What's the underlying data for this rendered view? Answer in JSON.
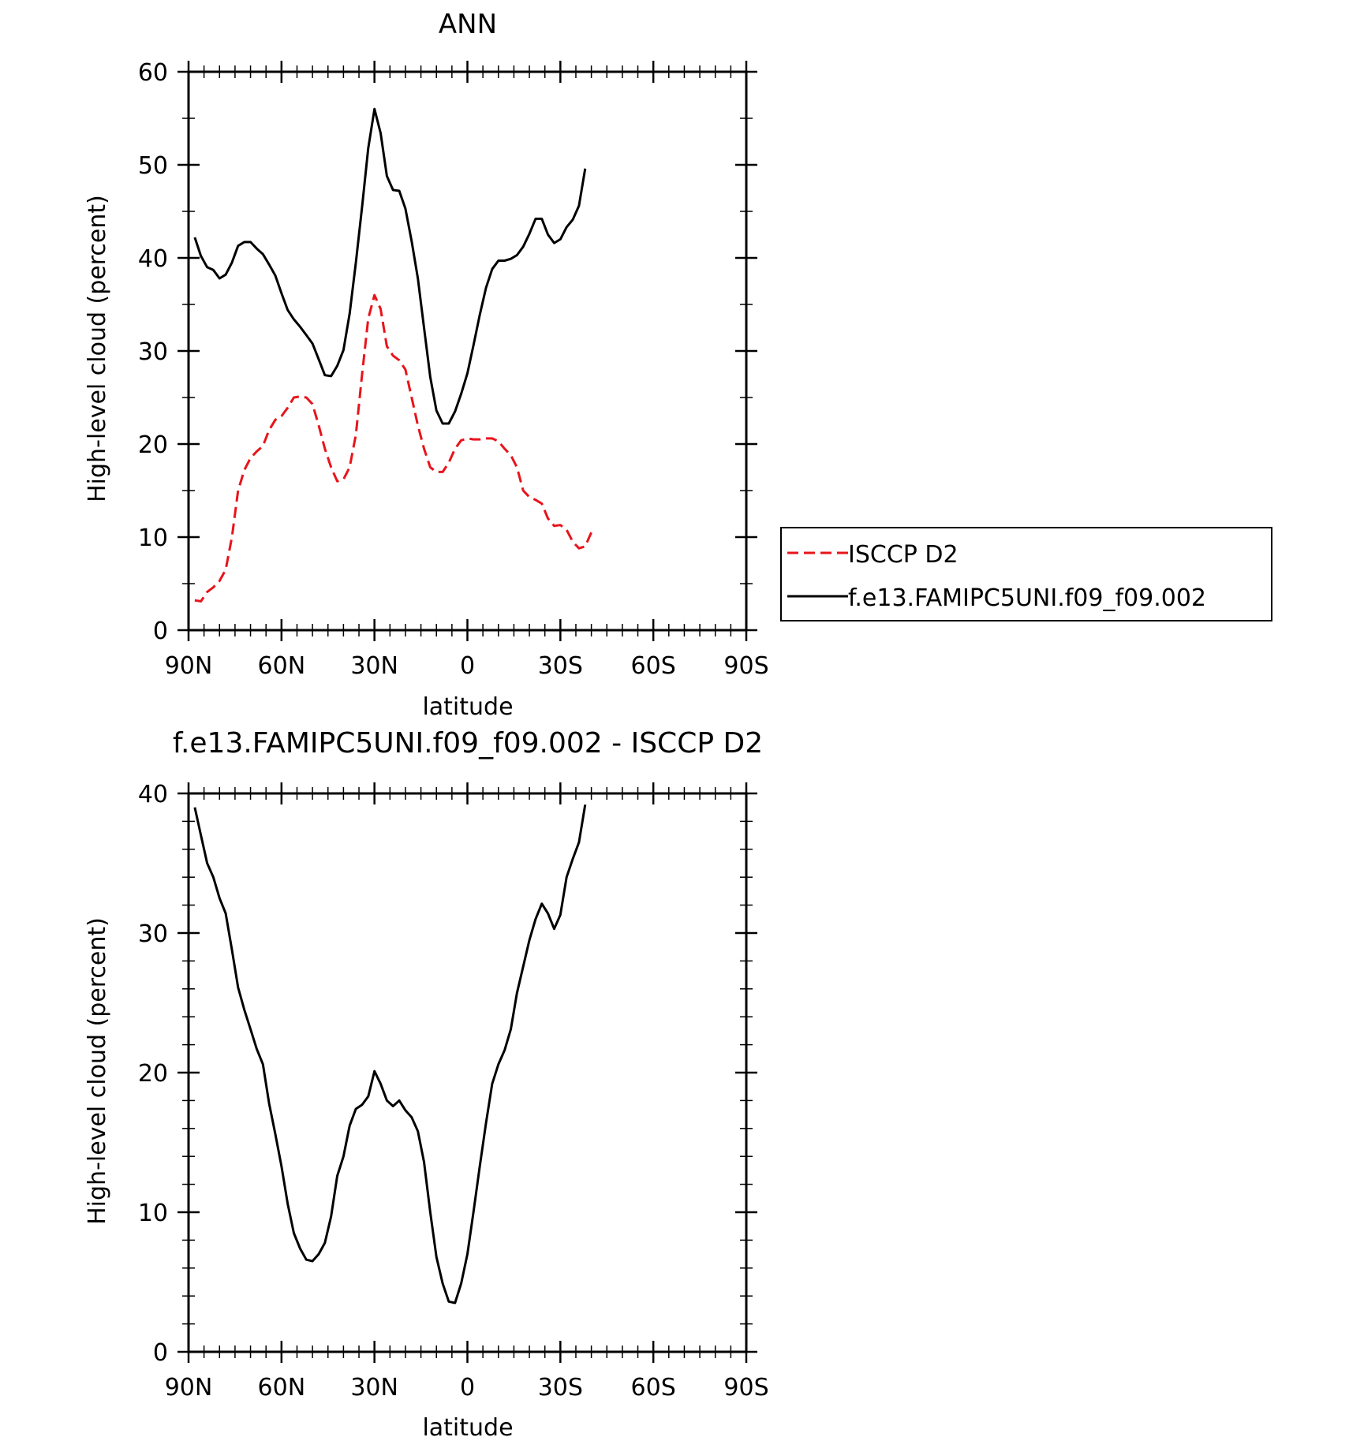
{
  "chart_data": [
    {
      "type": "line",
      "title": "ANN",
      "xlabel": "latitude",
      "ylabel": "High-level cloud (percent)",
      "xlim": [
        90,
        -90
      ],
      "ylim": [
        0,
        60
      ],
      "x_ticks": [
        {
          "v": 90,
          "label": "90N"
        },
        {
          "v": 60,
          "label": "60N"
        },
        {
          "v": 30,
          "label": "30N"
        },
        {
          "v": 0,
          "label": "0"
        },
        {
          "v": -30,
          "label": "30S"
        },
        {
          "v": -60,
          "label": "60S"
        },
        {
          "v": -90,
          "label": "90S"
        }
      ],
      "y_ticks": [
        0,
        10,
        20,
        30,
        40,
        50,
        60
      ],
      "legend_position": "right",
      "series": [
        {
          "name": "ISCCP D2",
          "color": "#e8141b",
          "dash": true,
          "points": [
            [
              88,
              3.2
            ],
            [
              86,
              3.1
            ],
            [
              84,
              4.1
            ],
            [
              82,
              4.6
            ],
            [
              80,
              5.3
            ],
            [
              78,
              6.5
            ],
            [
              76,
              10.0
            ],
            [
              74,
              15.0
            ],
            [
              72,
              17.2
            ],
            [
              70,
              18.5
            ],
            [
              68,
              19.2
            ],
            [
              66,
              19.8
            ],
            [
              64,
              21.5
            ],
            [
              62,
              22.6
            ],
            [
              60,
              23.0
            ],
            [
              58,
              23.9
            ],
            [
              56,
              25.0
            ],
            [
              54,
              25.1
            ],
            [
              52,
              25.0
            ],
            [
              50,
              24.3
            ],
            [
              48,
              22.0
            ],
            [
              46,
              19.5
            ],
            [
              44,
              17.5
            ],
            [
              42,
              16.0
            ],
            [
              40,
              16.2
            ],
            [
              38,
              17.5
            ],
            [
              36,
              21.0
            ],
            [
              34,
              27.5
            ],
            [
              32,
              33.5
            ],
            [
              30,
              36.0
            ],
            [
              28,
              34.5
            ],
            [
              26,
              30.5
            ],
            [
              24,
              29.5
            ],
            [
              22,
              29.0
            ],
            [
              20,
              28.0
            ],
            [
              18,
              25.0
            ],
            [
              16,
              22.0
            ],
            [
              14,
              19.5
            ],
            [
              12,
              17.5
            ],
            [
              10,
              17.0
            ],
            [
              8,
              17.0
            ],
            [
              6,
              18.0
            ],
            [
              4,
              19.5
            ],
            [
              2,
              20.4
            ],
            [
              0,
              20.6
            ],
            [
              -2,
              20.5
            ],
            [
              -4,
              20.5
            ],
            [
              -6,
              20.6
            ],
            [
              -8,
              20.6
            ],
            [
              -10,
              20.3
            ],
            [
              -12,
              19.5
            ],
            [
              -14,
              18.8
            ],
            [
              -16,
              17.5
            ],
            [
              -18,
              15.0
            ],
            [
              -20,
              14.3
            ],
            [
              -22,
              14.0
            ],
            [
              -24,
              13.6
            ],
            [
              -26,
              12.0
            ],
            [
              -28,
              11.2
            ],
            [
              -30,
              11.3
            ],
            [
              -32,
              10.8
            ],
            [
              -34,
              9.5
            ],
            [
              -36,
              8.8
            ],
            [
              -38,
              9.0
            ],
            [
              -40,
              10.5
            ]
          ]
        },
        {
          "name": "f.e13.FAMIPC5UNI.f09_f09.002",
          "color": "#000000",
          "dash": false,
          "points": [
            [
              88,
              42.2
            ],
            [
              86,
              40.2
            ],
            [
              84,
              39.0
            ],
            [
              82,
              38.7
            ],
            [
              80,
              37.8
            ],
            [
              78,
              38.2
            ],
            [
              76,
              39.5
            ],
            [
              74,
              41.3
            ],
            [
              72,
              41.7
            ],
            [
              70,
              41.7
            ],
            [
              68,
              41.0
            ],
            [
              66,
              40.4
            ],
            [
              64,
              39.3
            ],
            [
              62,
              38.1
            ],
            [
              60,
              36.2
            ],
            [
              58,
              34.4
            ],
            [
              56,
              33.4
            ],
            [
              54,
              32.6
            ],
            [
              52,
              31.7
            ],
            [
              50,
              30.8
            ],
            [
              48,
              29.1
            ],
            [
              46,
              27.4
            ],
            [
              44,
              27.3
            ],
            [
              42,
              28.4
            ],
            [
              40,
              30.1
            ],
            [
              38,
              34.0
            ],
            [
              36,
              39.5
            ],
            [
              34,
              45.5
            ],
            [
              32,
              51.8
            ],
            [
              30,
              56.0
            ],
            [
              28,
              53.4
            ],
            [
              26,
              48.8
            ],
            [
              24,
              47.3
            ],
            [
              22,
              47.2
            ],
            [
              20,
              45.3
            ],
            [
              18,
              41.8
            ],
            [
              16,
              37.8
            ],
            [
              14,
              32.5
            ],
            [
              12,
              27.2
            ],
            [
              10,
              23.6
            ],
            [
              8,
              22.2
            ],
            [
              6,
              22.2
            ],
            [
              4,
              23.5
            ],
            [
              2,
              25.4
            ],
            [
              0,
              27.6
            ],
            [
              -2,
              30.7
            ],
            [
              -4,
              33.9
            ],
            [
              -6,
              36.8
            ],
            [
              -8,
              38.8
            ],
            [
              -10,
              39.7
            ],
            [
              -12,
              39.7
            ],
            [
              -14,
              39.9
            ],
            [
              -16,
              40.3
            ],
            [
              -18,
              41.2
            ],
            [
              -20,
              42.6
            ],
            [
              -22,
              44.2
            ],
            [
              -24,
              44.2
            ],
            [
              -26,
              42.5
            ],
            [
              -28,
              41.6
            ],
            [
              -30,
              42.0
            ],
            [
              -32,
              43.3
            ],
            [
              -34,
              44.1
            ],
            [
              -36,
              45.6
            ],
            [
              -38,
              49.6
            ]
          ]
        }
      ]
    },
    {
      "type": "line",
      "title": "f.e13.FAMIPC5UNI.f09_f09.002 - ISCCP D2",
      "xlabel": "latitude",
      "ylabel": "High-level cloud (percent)",
      "xlim": [
        90,
        -90
      ],
      "ylim": [
        0,
        40
      ],
      "x_ticks": [
        {
          "v": 90,
          "label": "90N"
        },
        {
          "v": 60,
          "label": "60N"
        },
        {
          "v": 30,
          "label": "30N"
        },
        {
          "v": 0,
          "label": "0"
        },
        {
          "v": -30,
          "label": "30S"
        },
        {
          "v": -60,
          "label": "60S"
        },
        {
          "v": -90,
          "label": "90S"
        }
      ],
      "y_ticks": [
        0,
        10,
        20,
        30,
        40
      ],
      "series": [
        {
          "color": "#000000",
          "dash": false,
          "points": [
            [
              88,
              39.0
            ],
            [
              86,
              37.0
            ],
            [
              84,
              35.0
            ],
            [
              82,
              34.0
            ],
            [
              80,
              32.5
            ],
            [
              78,
              31.4
            ],
            [
              76,
              28.8
            ],
            [
              74,
              26.1
            ],
            [
              72,
              24.5
            ],
            [
              70,
              23.1
            ],
            [
              68,
              21.7
            ],
            [
              66,
              20.6
            ],
            [
              64,
              17.8
            ],
            [
              62,
              15.6
            ],
            [
              60,
              13.3
            ],
            [
              58,
              10.6
            ],
            [
              56,
              8.5
            ],
            [
              54,
              7.4
            ],
            [
              52,
              6.6
            ],
            [
              50,
              6.5
            ],
            [
              48,
              7.0
            ],
            [
              46,
              7.8
            ],
            [
              44,
              9.7
            ],
            [
              42,
              12.6
            ],
            [
              40,
              14.0
            ],
            [
              38,
              16.2
            ],
            [
              36,
              17.4
            ],
            [
              34,
              17.7
            ],
            [
              32,
              18.3
            ],
            [
              30,
              20.1
            ],
            [
              28,
              19.2
            ],
            [
              26,
              18.0
            ],
            [
              24,
              17.6
            ],
            [
              22,
              18.0
            ],
            [
              20,
              17.3
            ],
            [
              18,
              16.8
            ],
            [
              16,
              15.8
            ],
            [
              14,
              13.6
            ],
            [
              12,
              10.0
            ],
            [
              10,
              6.8
            ],
            [
              8,
              4.9
            ],
            [
              6,
              3.6
            ],
            [
              4,
              3.5
            ],
            [
              2,
              4.9
            ],
            [
              0,
              7.0
            ],
            [
              -2,
              10.1
            ],
            [
              -4,
              13.3
            ],
            [
              -6,
              16.4
            ],
            [
              -8,
              19.2
            ],
            [
              -10,
              20.6
            ],
            [
              -12,
              21.6
            ],
            [
              -14,
              23.1
            ],
            [
              -16,
              25.7
            ],
            [
              -18,
              27.6
            ],
            [
              -20,
              29.5
            ],
            [
              -22,
              31.0
            ],
            [
              -24,
              32.1
            ],
            [
              -26,
              31.4
            ],
            [
              -28,
              30.3
            ],
            [
              -30,
              31.3
            ],
            [
              -32,
              34.0
            ],
            [
              -34,
              35.3
            ],
            [
              -36,
              36.5
            ],
            [
              -38,
              39.2
            ]
          ]
        }
      ]
    }
  ]
}
